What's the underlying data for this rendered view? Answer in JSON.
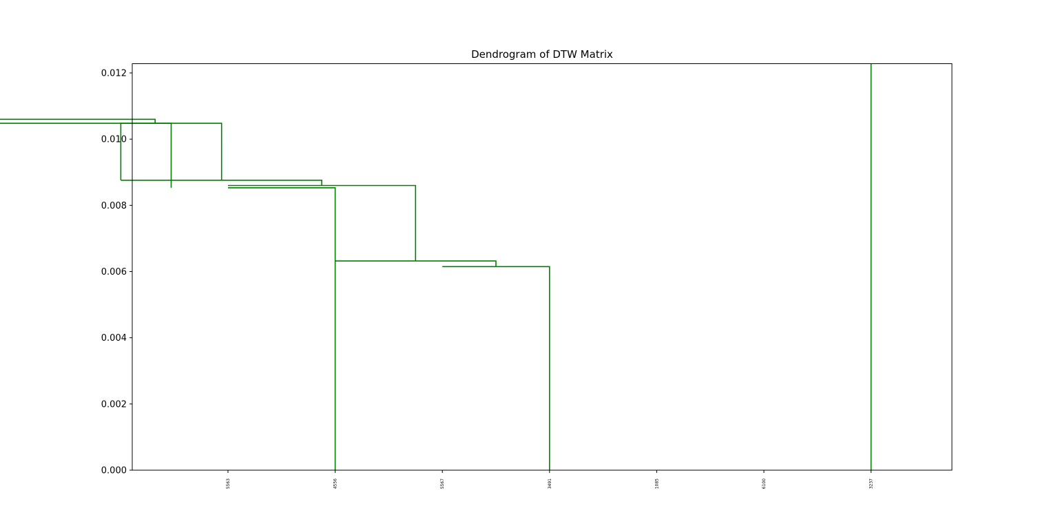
{
  "chart_data": {
    "type": "dendrogram",
    "title": "Dendrogram of DTW Matrix",
    "xlabel": "",
    "ylabel": "",
    "ylim": [
      0,
      0.01228
    ],
    "yticks": [
      "0.000",
      "0.002",
      "0.004",
      "0.006",
      "0.008",
      "0.010",
      "0.012"
    ],
    "ytick_values": [
      0,
      0.002,
      0.004,
      0.006,
      0.008,
      0.01,
      0.012
    ],
    "leaves": [
      "5563",
      "4556",
      "5567",
      "3491",
      "1085",
      "6100",
      "3237"
    ],
    "link_color": "#008000",
    "grid": false,
    "links": [
      {
        "x": [
          0.0,
          0.0,
          1.0,
          1.0
        ],
        "y": [
          0.00853,
          0.00853,
          0.00853,
          0
        ]
      },
      {
        "x": [
          2.0,
          2.0,
          3.0,
          3.0
        ],
        "y": [
          0.00615,
          0.00615,
          0.00615,
          0
        ]
      },
      {
        "x": [
          1.0,
          1.0,
          2.5,
          2.5
        ],
        "y": [
          0.00632,
          0.00632,
          0.00632,
          0.00615
        ]
      },
      {
        "x": [
          0.0,
          0.0,
          1.75,
          1.75
        ],
        "y": [
          0.0086,
          0.0086,
          0.0086,
          0.00632
        ]
      },
      {
        "x": [
          -1.0,
          -1.0,
          0.875,
          0.875
        ],
        "y": [
          0.00876,
          0.00876,
          0.00876,
          0.0086
        ]
      },
      {
        "x": [
          -1.0,
          -1.0,
          -0.06,
          -0.06
        ],
        "y": [
          0.00876,
          0.01048,
          0.01048,
          0.00876
        ]
      },
      {
        "x": [
          -2.56,
          -2.56,
          -0.53,
          -0.53
        ],
        "y": [
          0.00853,
          0.01048,
          0.01048,
          0.00853
        ]
      },
      {
        "x": [
          -2.96,
          -2.96,
          -0.68,
          -0.68
        ],
        "y": [
          0.0106,
          0.0106,
          0.0106,
          0.01048
        ]
      },
      {
        "x": [
          -2.96,
          -2.96,
          -2.56,
          -2.56
        ],
        "y": [
          0.01189,
          0.01189,
          0.01189,
          0.0106
        ]
      },
      {
        "x": [
          6.0,
          6.0
        ],
        "y": [
          0,
          0.01228
        ]
      }
    ]
  }
}
